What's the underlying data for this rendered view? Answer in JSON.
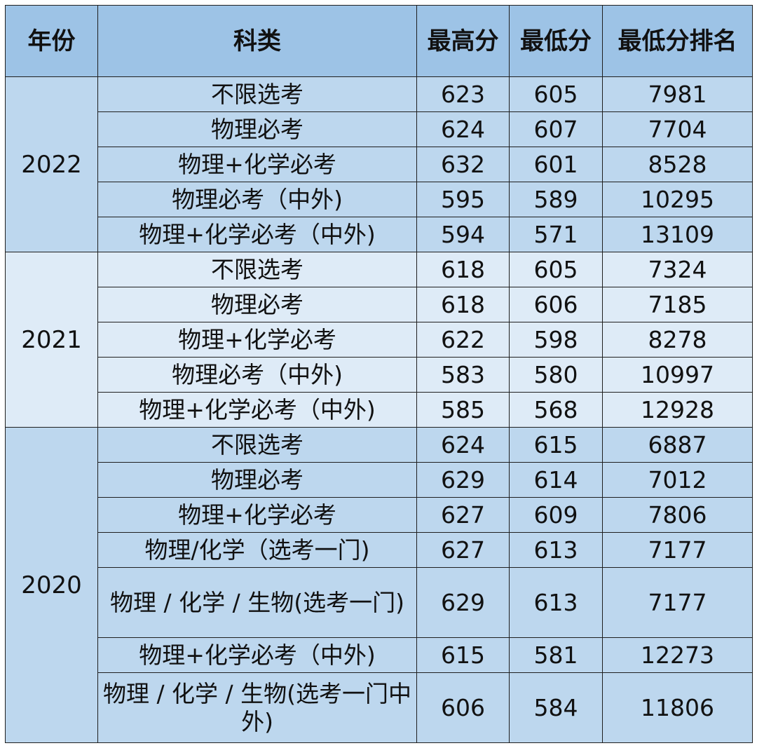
{
  "headers": {
    "year": "年份",
    "subject": "科类",
    "max_score": "最高分",
    "min_score": "最低分",
    "min_rank": "最低分排名"
  },
  "groups": [
    {
      "year": "2022",
      "rows": [
        {
          "subject": "不限选考",
          "max": "623",
          "min": "605",
          "rank": "7981"
        },
        {
          "subject": "物理必考",
          "max": "624",
          "min": "607",
          "rank": "7704"
        },
        {
          "subject": "物理+化学必考",
          "max": "632",
          "min": "601",
          "rank": "8528"
        },
        {
          "subject": "物理必考（中外)",
          "max": "595",
          "min": "589",
          "rank": "10295"
        },
        {
          "subject": "物理+化学必考（中外)",
          "max": "594",
          "min": "571",
          "rank": "13109"
        }
      ]
    },
    {
      "year": "2021",
      "rows": [
        {
          "subject": "不限选考",
          "max": "618",
          "min": "605",
          "rank": "7324"
        },
        {
          "subject": "物理必考",
          "max": "618",
          "min": "606",
          "rank": "7185"
        },
        {
          "subject": "物理+化学必考",
          "max": "622",
          "min": "598",
          "rank": "8278"
        },
        {
          "subject": "物理必考（中外)",
          "max": "583",
          "min": "580",
          "rank": "10997"
        },
        {
          "subject": "物理+化学必考（中外)",
          "max": "585",
          "min": "568",
          "rank": "12928"
        }
      ]
    },
    {
      "year": "2020",
      "rows": [
        {
          "subject": "不限选考",
          "max": "624",
          "min": "615",
          "rank": "6887"
        },
        {
          "subject": "物理必考",
          "max": "629",
          "min": "614",
          "rank": "7012"
        },
        {
          "subject": "物理+化学必考",
          "max": "627",
          "min": "609",
          "rank": "7806"
        },
        {
          "subject": "物理/化学（选考一门)",
          "max": "627",
          "min": "613",
          "rank": "7177"
        },
        {
          "subject": "物理 / 化学 / 生物(选考一门)",
          "max": "629",
          "min": "613",
          "rank": "7177"
        },
        {
          "subject": "物理+化学必考（中外)",
          "max": "615",
          "min": "581",
          "rank": "12273"
        },
        {
          "subject": "物理 / 化学 / 生物(选考一门中外)",
          "max": "606",
          "min": "584",
          "rank": "11806"
        }
      ]
    }
  ]
}
